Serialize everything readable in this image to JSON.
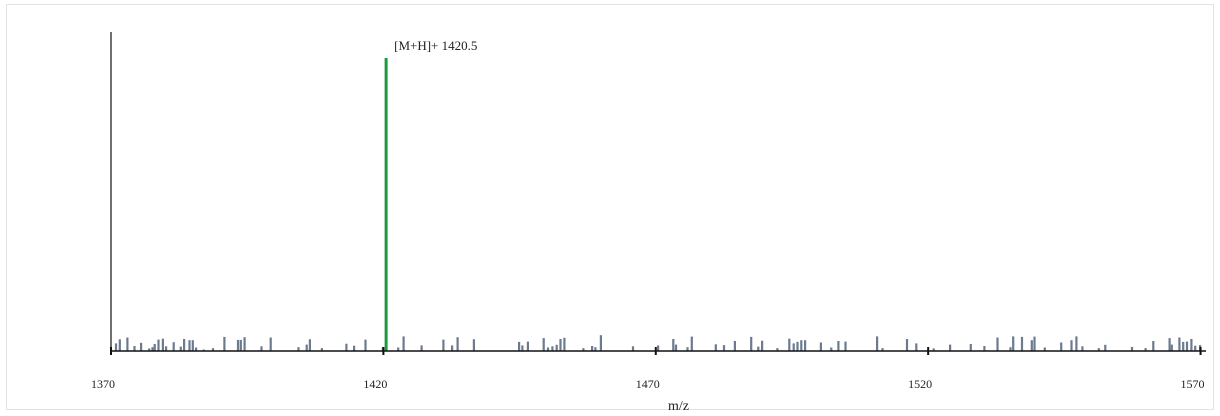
{
  "chart_data": {
    "type": "bar",
    "title": "",
    "xlabel": "m/z",
    "ylabel": "",
    "xlim": [
      1370,
      1571
    ],
    "ylim": [
      0,
      100
    ],
    "grid": false,
    "xticks": [
      1370,
      1420,
      1470,
      1520,
      1570
    ],
    "peak": {
      "mz": 1420.5,
      "intensity": 100,
      "label": "[M+H]+ 1420.5",
      "color": "#1a9c3e"
    },
    "noise_color": "#6b7a8f",
    "axis_color": "#111111",
    "noise_peaks": [
      [
        1370.9,
        2.6
      ],
      [
        1371.6,
        4.0
      ],
      [
        1373.0,
        4.6
      ],
      [
        1374.3,
        1.7
      ],
      [
        1375.5,
        2.8
      ],
      [
        1377.0,
        0.9
      ],
      [
        1377.6,
        1.3
      ],
      [
        1378.0,
        2.4
      ],
      [
        1378.7,
        3.9
      ],
      [
        1379.5,
        4.2
      ],
      [
        1380.1,
        1.6
      ],
      [
        1381.5,
        3.0
      ],
      [
        1382.8,
        1.5
      ],
      [
        1383.4,
        4.1
      ],
      [
        1384.4,
        3.7
      ],
      [
        1385.0,
        3.7
      ],
      [
        1385.6,
        1.2
      ],
      [
        1387.0,
        0.5
      ],
      [
        1388.7,
        1.0
      ],
      [
        1390.8,
        4.8
      ],
      [
        1393.3,
        3.8
      ],
      [
        1393.8,
        3.8
      ],
      [
        1394.5,
        4.7
      ],
      [
        1397.6,
        1.6
      ],
      [
        1399.3,
        4.6
      ],
      [
        1404.4,
        1.3
      ],
      [
        1405.9,
        2.2
      ],
      [
        1406.5,
        4.0
      ],
      [
        1408.7,
        1.0
      ],
      [
        1413.2,
        2.5
      ],
      [
        1414.6,
        1.8
      ],
      [
        1416.7,
        3.9
      ],
      [
        1419.9,
        1.3
      ],
      [
        1422.7,
        1.2
      ],
      [
        1423.7,
        5.0
      ],
      [
        1427.0,
        1.9
      ],
      [
        1431.0,
        3.9
      ],
      [
        1432.6,
        1.9
      ],
      [
        1433.6,
        4.7
      ],
      [
        1436.6,
        4.0
      ],
      [
        1444.9,
        3.1
      ],
      [
        1445.5,
        1.9
      ],
      [
        1446.5,
        3.2
      ],
      [
        1449.4,
        4.4
      ],
      [
        1450.2,
        1.2
      ],
      [
        1451.0,
        1.6
      ],
      [
        1451.8,
        2.1
      ],
      [
        1452.5,
        4.1
      ],
      [
        1453.2,
        4.5
      ],
      [
        1456.7,
        1.0
      ],
      [
        1458.3,
        1.7
      ],
      [
        1458.9,
        1.3
      ],
      [
        1459.9,
        5.4
      ],
      [
        1465.8,
        1.6
      ],
      [
        1470.4,
        1.9
      ],
      [
        1473.2,
        4.1
      ],
      [
        1473.7,
        2.2
      ],
      [
        1475.8,
        1.3
      ],
      [
        1476.6,
        4.9
      ],
      [
        1481.0,
        2.3
      ],
      [
        1482.5,
        2.0
      ],
      [
        1484.5,
        3.4
      ],
      [
        1487.5,
        4.8
      ],
      [
        1488.8,
        1.5
      ],
      [
        1489.5,
        3.5
      ],
      [
        1492.3,
        1.0
      ],
      [
        1494.5,
        4.2
      ],
      [
        1495.3,
        2.6
      ],
      [
        1496.0,
        3.1
      ],
      [
        1496.7,
        3.7
      ],
      [
        1497.4,
        3.7
      ],
      [
        1500.3,
        2.9
      ],
      [
        1502.2,
        1.2
      ],
      [
        1503.5,
        3.4
      ],
      [
        1504.8,
        3.2
      ],
      [
        1510.6,
        5.0
      ],
      [
        1511.6,
        1.0
      ],
      [
        1516.1,
        4.1
      ],
      [
        1517.8,
        2.6
      ],
      [
        1521.0,
        0.9
      ],
      [
        1524.0,
        2.2
      ],
      [
        1527.8,
        2.4
      ],
      [
        1530.3,
        1.7
      ],
      [
        1532.7,
        4.6
      ],
      [
        1535.1,
        1.3
      ],
      [
        1535.6,
        5.0
      ],
      [
        1537.2,
        4.8
      ],
      [
        1539.0,
        3.7
      ],
      [
        1539.5,
        4.9
      ],
      [
        1541.4,
        1.2
      ],
      [
        1544.4,
        2.9
      ],
      [
        1546.3,
        3.7
      ],
      [
        1547.2,
        5.0
      ],
      [
        1548.3,
        1.6
      ],
      [
        1551.3,
        1.0
      ],
      [
        1552.5,
        2.1
      ],
      [
        1557.4,
        1.4
      ],
      [
        1559.9,
        1.0
      ],
      [
        1561.3,
        3.4
      ],
      [
        1564.3,
        4.4
      ],
      [
        1564.7,
        2.2
      ],
      [
        1566.1,
        4.6
      ],
      [
        1566.8,
        3.1
      ],
      [
        1567.5,
        3.2
      ],
      [
        1568.3,
        4.1
      ],
      [
        1569.0,
        1.8
      ],
      [
        1569.9,
        2.0
      ]
    ]
  }
}
